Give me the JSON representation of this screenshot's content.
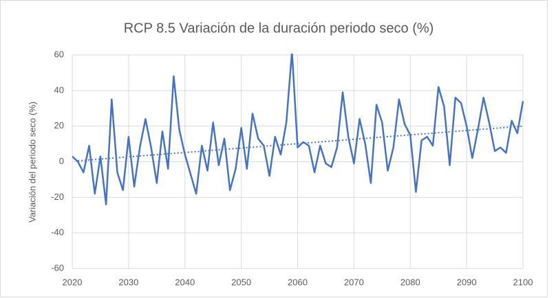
{
  "chart_data": {
    "type": "line",
    "title": "RCP 8.5 Variación de la duración periodo seco (%)",
    "y_label": "Variación del periodo seco  (%)",
    "x": [
      2020,
      2021,
      2022,
      2023,
      2024,
      2025,
      2026,
      2027,
      2028,
      2029,
      2030,
      2031,
      2032,
      2033,
      2034,
      2035,
      2036,
      2037,
      2038,
      2039,
      2040,
      2041,
      2042,
      2043,
      2044,
      2045,
      2046,
      2047,
      2048,
      2049,
      2050,
      2051,
      2052,
      2053,
      2054,
      2055,
      2056,
      2057,
      2058,
      2059,
      2060,
      2061,
      2062,
      2063,
      2064,
      2065,
      2066,
      2067,
      2068,
      2069,
      2070,
      2071,
      2072,
      2073,
      2074,
      2075,
      2076,
      2077,
      2078,
      2079,
      2080,
      2081,
      2082,
      2083,
      2084,
      2085,
      2086,
      2087,
      2088,
      2089,
      2090,
      2091,
      2092,
      2093,
      2094,
      2095,
      2096,
      2097,
      2098,
      2099,
      2100
    ],
    "series": [
      {
        "color": "#4472c4",
        "values": [
          3,
          0,
          -6,
          9,
          -18,
          3,
          -24,
          35,
          -6,
          -16,
          14,
          -14,
          8,
          24,
          8,
          -12,
          17,
          -4,
          48,
          18,
          4,
          -7,
          -18,
          9,
          -5,
          22,
          -2,
          13,
          -16,
          -4,
          19,
          -4,
          27,
          13,
          9,
          -8,
          14,
          4,
          22,
          62,
          8,
          11,
          9,
          -6,
          9,
          -1,
          -3,
          8,
          39,
          14,
          -1,
          24,
          10,
          -12,
          32,
          22,
          -5,
          8,
          35,
          21,
          15,
          -17,
          12,
          14,
          9,
          42,
          31,
          -2,
          36,
          33,
          20,
          2,
          18,
          36,
          22,
          6,
          8,
          5,
          23,
          16,
          34
        ]
      }
    ],
    "trendline": {
      "x": [
        2021,
        2100
      ],
      "values": [
        0.5,
        20
      ],
      "color": "#4472c4",
      "style": "dotted"
    },
    "xlim": [
      2020,
      2100
    ],
    "xticks": [
      2020,
      2030,
      2040,
      2050,
      2060,
      2070,
      2080,
      2090,
      2100
    ],
    "ylim": [
      -60,
      60
    ],
    "yticks": [
      -60,
      -40,
      -20,
      0,
      20,
      40,
      60
    ],
    "grid": true
  }
}
